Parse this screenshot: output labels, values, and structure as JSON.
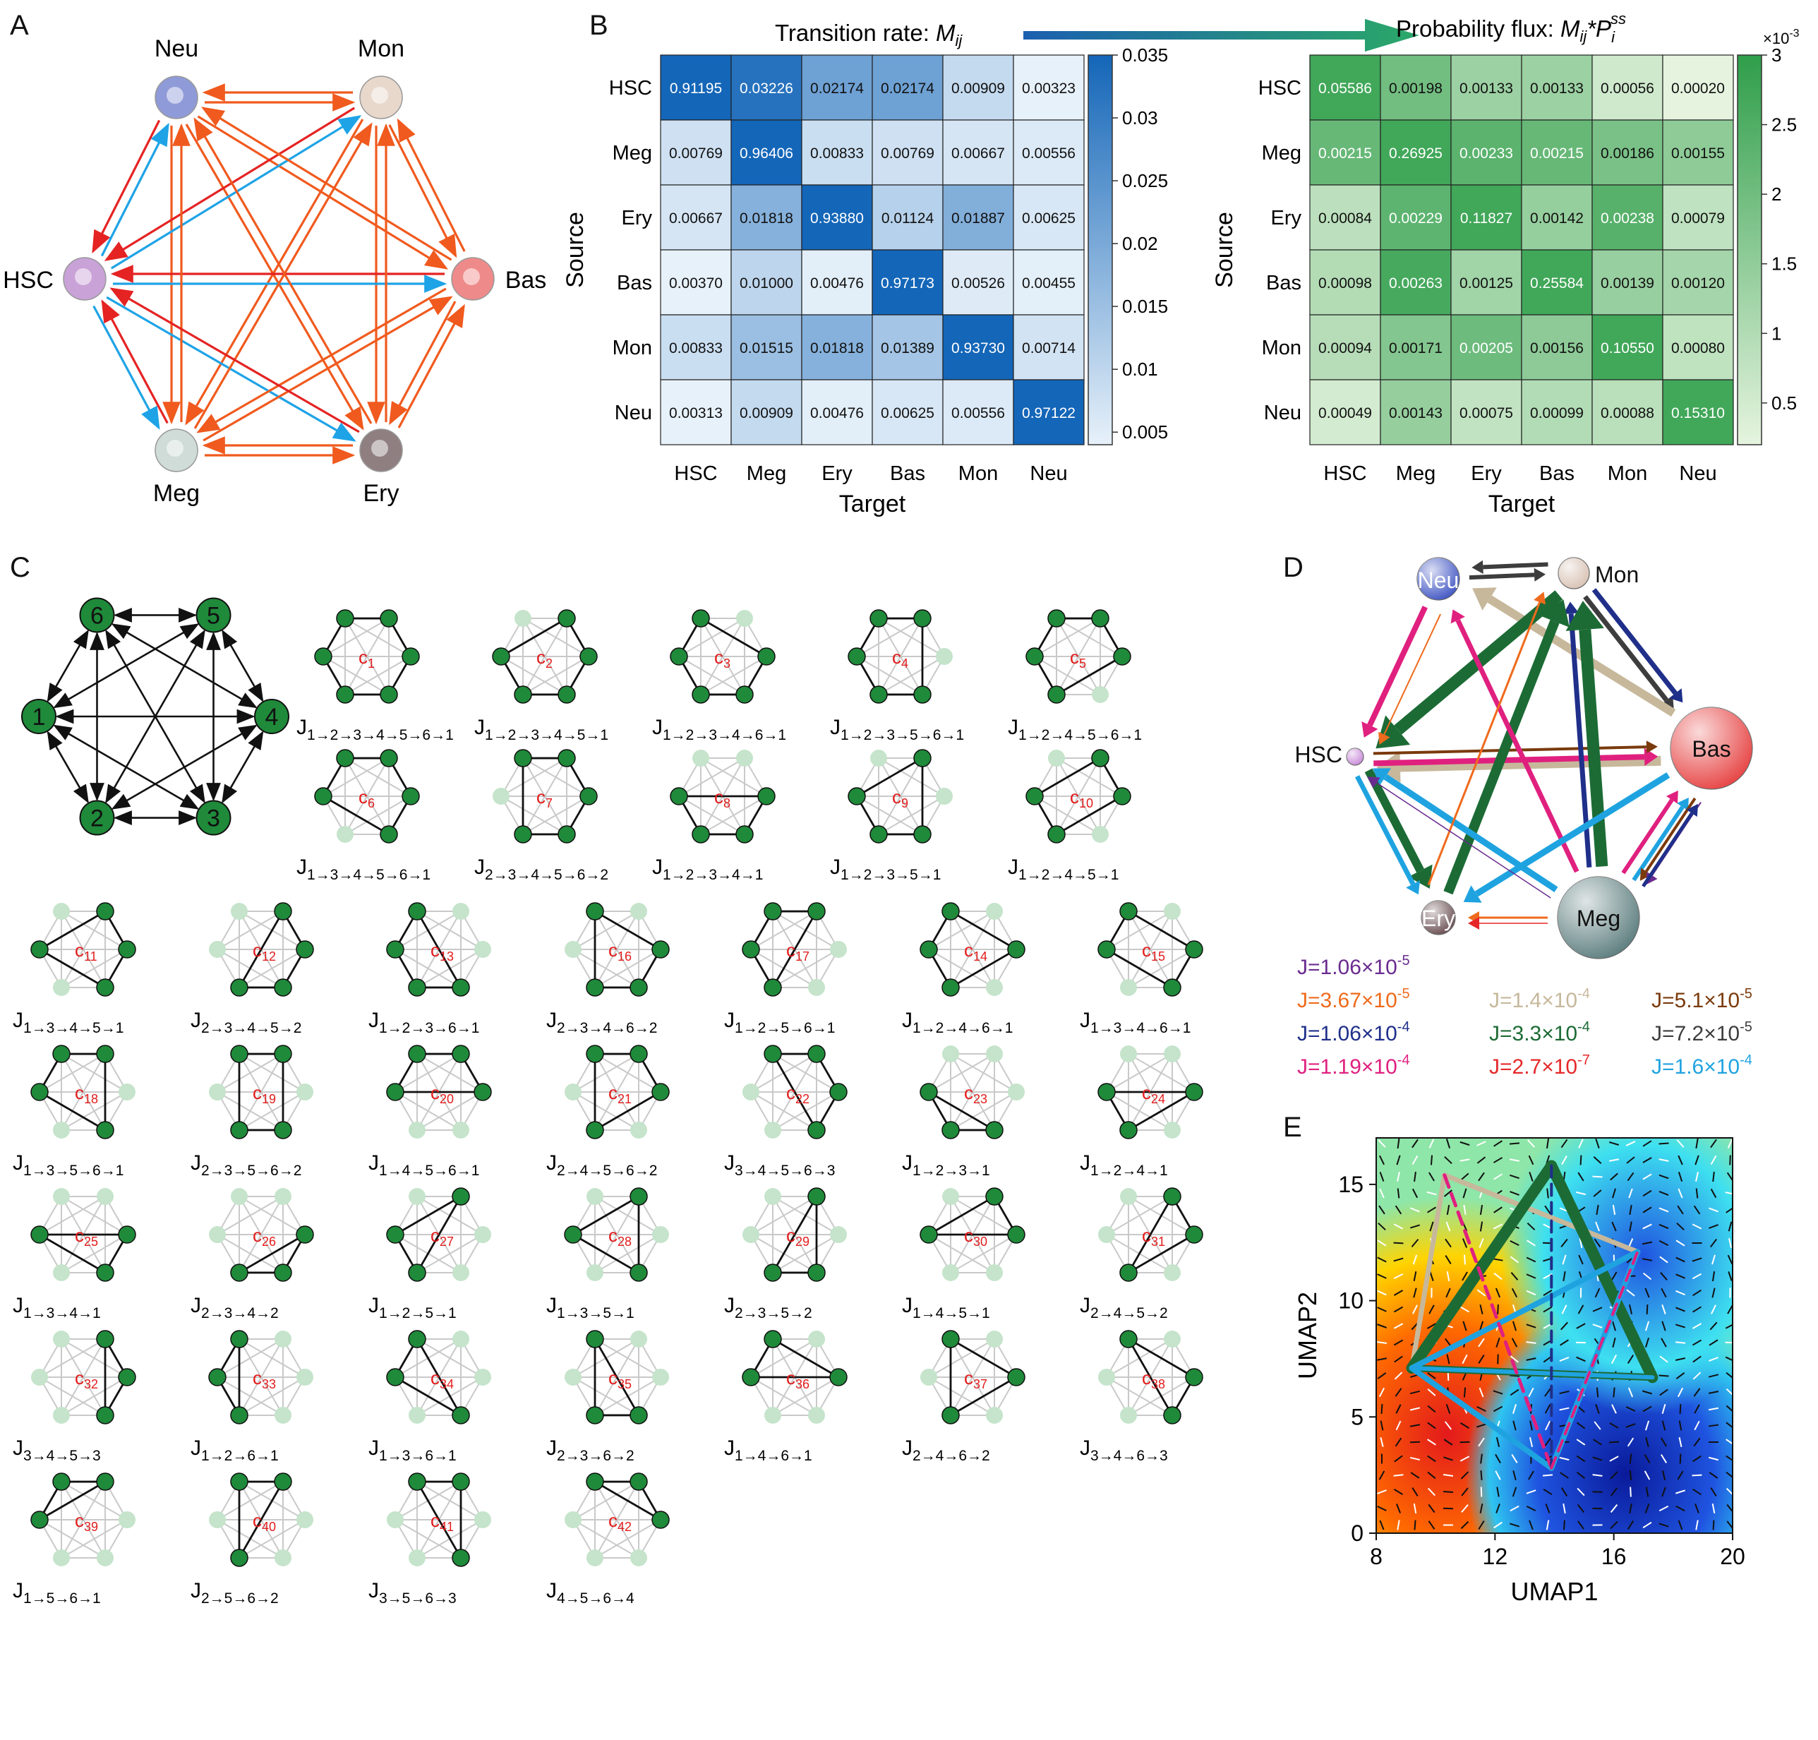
{
  "panels": {
    "A": {
      "label": "A",
      "nodes": [
        {
          "name": "Neu",
          "color": "#8f9ad8"
        },
        {
          "name": "Mon",
          "color": "#e8d8cc"
        },
        {
          "name": "HSC",
          "color": "#c9a2d8"
        },
        {
          "name": "Bas",
          "color": "#ef8a8a"
        },
        {
          "name": "Meg",
          "color": "#cfdcd7"
        },
        {
          "name": "Ery",
          "color": "#8f7f80"
        }
      ],
      "arrow_colors": {
        "orange": "#f05a1e",
        "red": "#e52323",
        "blue": "#1ea3e6"
      }
    },
    "B": {
      "label": "B",
      "flow_arrow_colors": [
        "#1b5fb0",
        "#2aa66a"
      ],
      "rows": [
        "HSC",
        "Meg",
        "Ery",
        "Bas",
        "Mon",
        "Neu"
      ],
      "cols": [
        "HSC",
        "Meg",
        "Ery",
        "Bas",
        "Mon",
        "Neu"
      ],
      "xlabel": "Target",
      "ylabel": "Source",
      "left": {
        "title_prefix": "Transition rate: ",
        "title_math": "M",
        "title_sub": "ij",
        "values": [
          [
            "0.91195",
            "0.03226",
            "0.02174",
            "0.02174",
            "0.00909",
            "0.00323"
          ],
          [
            "0.00769",
            "0.96406",
            "0.00833",
            "0.00769",
            "0.00667",
            "0.00556"
          ],
          [
            "0.00667",
            "0.01818",
            "0.93880",
            "0.01124",
            "0.01887",
            "0.00625"
          ],
          [
            "0.00370",
            "0.01000",
            "0.00476",
            "0.97173",
            "0.00526",
            "0.00455"
          ],
          [
            "0.00833",
            "0.01515",
            "0.01818",
            "0.01389",
            "0.93730",
            "0.00714"
          ],
          [
            "0.00313",
            "0.00909",
            "0.00476",
            "0.00625",
            "0.00556",
            "0.97122"
          ]
        ],
        "colorbar_ticks": [
          "0.035",
          "0.03",
          "0.025",
          "0.02",
          "0.015",
          "0.01",
          "0.005"
        ],
        "colorbar_range": [
          0.004,
          0.035
        ],
        "color_low": "#e7f1fa",
        "color_high": "#1466b8"
      },
      "right": {
        "title_prefix": "Probability flux: ",
        "title_math": "M",
        "title_sub": "ij",
        "title_mid": "*P",
        "title_sub2": "i",
        "title_sup2": "ss",
        "values": [
          [
            "0.05586",
            "0.00198",
            "0.00133",
            "0.00133",
            "0.00056",
            "0.00020"
          ],
          [
            "0.00215",
            "0.26925",
            "0.00233",
            "0.00215",
            "0.00186",
            "0.00155"
          ],
          [
            "0.00084",
            "0.00229",
            "0.11827",
            "0.00142",
            "0.00238",
            "0.00079"
          ],
          [
            "0.00098",
            "0.00263",
            "0.00125",
            "0.25584",
            "0.00139",
            "0.00120"
          ],
          [
            "0.00094",
            "0.00171",
            "0.00205",
            "0.00156",
            "0.10550",
            "0.00080"
          ],
          [
            "0.00049",
            "0.00143",
            "0.00075",
            "0.00099",
            "0.00088",
            "0.15310"
          ]
        ],
        "colorbar_ticks": [
          "3",
          "2.5",
          "2",
          "1.5",
          "1",
          "0.5"
        ],
        "colorbar_exponent_base": "×10",
        "colorbar_exponent": "-3",
        "colorbar_range": [
          0.2,
          3.0
        ],
        "color_low": "#e6f4df",
        "color_high": "#2f9e4a"
      }
    },
    "C": {
      "label": "C",
      "node_labels": [
        "1",
        "2",
        "3",
        "4",
        "5",
        "6"
      ],
      "cycles": [
        {
          "c": "1",
          "path": [
            "1",
            "2",
            "3",
            "4",
            "5",
            "6",
            "1"
          ]
        },
        {
          "c": "2",
          "path": [
            "1",
            "2",
            "3",
            "4",
            "5",
            "1"
          ]
        },
        {
          "c": "3",
          "path": [
            "1",
            "2",
            "3",
            "4",
            "6",
            "1"
          ]
        },
        {
          "c": "4",
          "path": [
            "1",
            "2",
            "3",
            "5",
            "6",
            "1"
          ]
        },
        {
          "c": "5",
          "path": [
            "1",
            "2",
            "4",
            "5",
            "6",
            "1"
          ]
        },
        {
          "c": "6",
          "path": [
            "1",
            "3",
            "4",
            "5",
            "6",
            "1"
          ]
        },
        {
          "c": "7",
          "path": [
            "2",
            "3",
            "4",
            "5",
            "6",
            "2"
          ]
        },
        {
          "c": "8",
          "path": [
            "1",
            "2",
            "3",
            "4",
            "1"
          ]
        },
        {
          "c": "9",
          "path": [
            "1",
            "2",
            "3",
            "5",
            "1"
          ]
        },
        {
          "c": "10",
          "path": [
            "1",
            "2",
            "4",
            "5",
            "1"
          ]
        },
        {
          "c": "11",
          "path": [
            "1",
            "3",
            "4",
            "5",
            "1"
          ]
        },
        {
          "c": "12",
          "path": [
            "2",
            "3",
            "4",
            "5",
            "2"
          ]
        },
        {
          "c": "13",
          "path": [
            "1",
            "2",
            "3",
            "6",
            "1"
          ]
        },
        {
          "c": "16",
          "path": [
            "2",
            "3",
            "4",
            "6",
            "2"
          ]
        },
        {
          "c": "17",
          "path": [
            "1",
            "2",
            "5",
            "6",
            "1"
          ]
        },
        {
          "c": "14",
          "path": [
            "1",
            "2",
            "4",
            "6",
            "1"
          ]
        },
        {
          "c": "15",
          "path": [
            "1",
            "3",
            "4",
            "6",
            "1"
          ]
        },
        {
          "c": "18",
          "path": [
            "1",
            "3",
            "5",
            "6",
            "1"
          ]
        },
        {
          "c": "19",
          "path": [
            "2",
            "3",
            "5",
            "6",
            "2"
          ]
        },
        {
          "c": "20",
          "path": [
            "1",
            "4",
            "5",
            "6",
            "1"
          ]
        },
        {
          "c": "21",
          "path": [
            "2",
            "4",
            "5",
            "6",
            "2"
          ]
        },
        {
          "c": "22",
          "path": [
            "3",
            "4",
            "5",
            "6",
            "3"
          ]
        },
        {
          "c": "23",
          "path": [
            "1",
            "2",
            "3",
            "1"
          ]
        },
        {
          "c": "24",
          "path": [
            "1",
            "2",
            "4",
            "1"
          ]
        },
        {
          "c": "25",
          "path": [
            "1",
            "3",
            "4",
            "1"
          ]
        },
        {
          "c": "26",
          "path": [
            "2",
            "3",
            "4",
            "2"
          ]
        },
        {
          "c": "27",
          "path": [
            "1",
            "2",
            "5",
            "1"
          ]
        },
        {
          "c": "28",
          "path": [
            "1",
            "3",
            "5",
            "1"
          ]
        },
        {
          "c": "29",
          "path": [
            "2",
            "3",
            "5",
            "2"
          ]
        },
        {
          "c": "30",
          "path": [
            "1",
            "4",
            "5",
            "1"
          ]
        },
        {
          "c": "31",
          "path": [
            "2",
            "4",
            "5",
            "2"
          ]
        },
        {
          "c": "32",
          "path": [
            "3",
            "4",
            "5",
            "3"
          ]
        },
        {
          "c": "33",
          "path": [
            "1",
            "2",
            "6",
            "1"
          ]
        },
        {
          "c": "34",
          "path": [
            "1",
            "3",
            "6",
            "1"
          ]
        },
        {
          "c": "35",
          "path": [
            "2",
            "3",
            "6",
            "2"
          ]
        },
        {
          "c": "36",
          "path": [
            "1",
            "4",
            "6",
            "1"
          ]
        },
        {
          "c": "37",
          "path": [
            "2",
            "4",
            "6",
            "2"
          ]
        },
        {
          "c": "38",
          "path": [
            "3",
            "4",
            "6",
            "3"
          ]
        },
        {
          "c": "39",
          "path": [
            "1",
            "5",
            "6",
            "1"
          ]
        },
        {
          "c": "40",
          "path": [
            "2",
            "5",
            "6",
            "2"
          ]
        },
        {
          "c": "41",
          "path": [
            "3",
            "5",
            "6",
            "3"
          ]
        },
        {
          "c": "42",
          "path": [
            "4",
            "5",
            "6",
            "4"
          ]
        }
      ],
      "colors": {
        "node": "#1f8a3a",
        "node_light": "#c5e4cb",
        "edge": "#111111",
        "edge_light": "#c9c9c9",
        "cycle_label": "#e21c1c"
      }
    },
    "D": {
      "label": "D",
      "nodes": [
        {
          "name": "Neu",
          "color": "#4257c4"
        },
        {
          "name": "Mon",
          "color": "#d8c2b4"
        },
        {
          "name": "HSC",
          "color": "#c98ad8"
        },
        {
          "name": "Bas",
          "color": "#e74545"
        },
        {
          "name": "Ery",
          "color": "#6b4f52"
        },
        {
          "name": "Meg",
          "color": "#5f7f80"
        }
      ],
      "legend": [
        {
          "text": "J=1.06×10",
          "exp": "-5",
          "color": "#6a2b8f"
        },
        {
          "text": "J=3.67×10",
          "exp": "-5",
          "color": "#ef6a1c"
        },
        {
          "text": "J=1.4×10",
          "exp": "-4",
          "color": "#c7b89b"
        },
        {
          "text": "J=5.1×10",
          "exp": "-5",
          "color": "#7a3a0c"
        },
        {
          "text": "J=1.06×10",
          "exp": "-4",
          "color": "#1f2f8a"
        },
        {
          "text": "J=3.3×10",
          "exp": "-4",
          "color": "#1c6b35"
        },
        {
          "text": "J=7.2×10",
          "exp": "-5",
          "color": "#3d3d3d"
        },
        {
          "text": "J=1.19×10",
          "exp": "-4",
          "color": "#e0207f"
        },
        {
          "text": "J=2.7×10",
          "exp": "-7",
          "color": "#e5282a"
        },
        {
          "text": "J=1.6×10",
          "exp": "-4",
          "color": "#1fa3e0"
        }
      ]
    },
    "E": {
      "label": "E",
      "chart_data": {
        "type": "scatter",
        "xlabel": "UMAP1",
        "ylabel": "UMAP2",
        "xlim": [
          8,
          20
        ],
        "ylim": [
          0,
          17
        ],
        "xticks": [
          "8",
          "12",
          "16",
          "20"
        ],
        "yticks": [
          "0",
          "5",
          "10",
          "15"
        ]
      }
    }
  }
}
